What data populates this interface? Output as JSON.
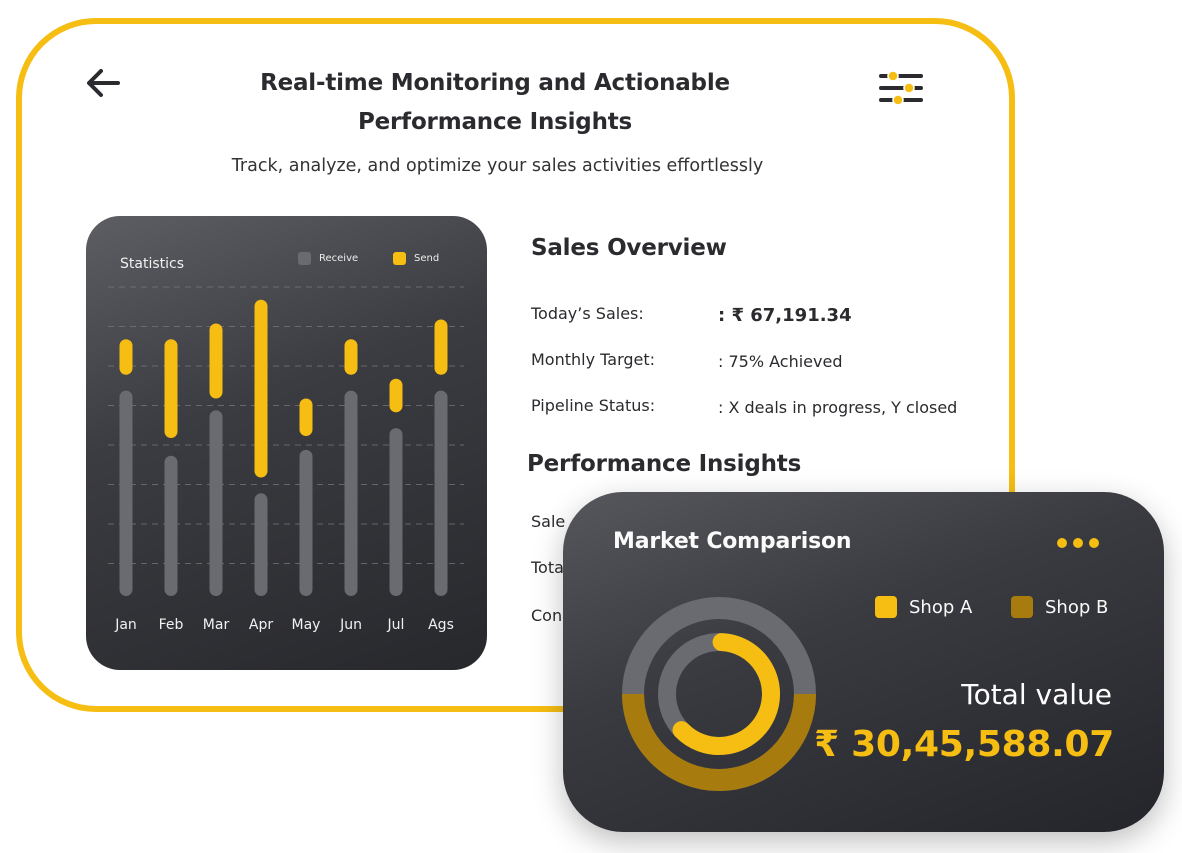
{
  "header": {
    "title_line1": "Real-time Monitoring and Actionable",
    "title_line2": "Performance Insights",
    "subtitle": "Track, analyze, and optimize your sales activities effortlessly",
    "back_icon": "arrow-left-icon",
    "filter_icon": "sliders-icon"
  },
  "colors": {
    "accent": "#f6bd12",
    "dark_card": "#2f3035",
    "bar_grey": "#6a6b70",
    "shop_b": "#a87b0e"
  },
  "statistics": {
    "title": "Statistics",
    "legend": [
      {
        "label": "Receive",
        "color": "#6a6b70"
      },
      {
        "label": "Send",
        "color": "#f6bd12"
      }
    ]
  },
  "chart_data": {
    "type": "bar",
    "categories": [
      "Jan",
      "Feb",
      "Mar",
      "Apr",
      "May",
      "Jun",
      "Jul",
      "Ags"
    ],
    "series": [
      {
        "name": "Receive",
        "values": [
          [
            0,
            10.4
          ],
          [
            0,
            7.1
          ],
          [
            0,
            9.4
          ],
          [
            0,
            5.2
          ],
          [
            0,
            7.4
          ],
          [
            0,
            10.4
          ],
          [
            0,
            8.5
          ],
          [
            0,
            10.4
          ]
        ]
      },
      {
        "name": "Send",
        "values": [
          [
            11.2,
            13.0
          ],
          [
            8.0,
            13.0
          ],
          [
            10.0,
            13.8
          ],
          [
            6.0,
            15.0
          ],
          [
            8.1,
            10.0
          ],
          [
            11.2,
            13.0
          ],
          [
            9.3,
            11.0
          ],
          [
            11.2,
            14.0
          ]
        ]
      }
    ],
    "ylim": [
      0,
      16
    ],
    "grid": true,
    "legend": "top-right"
  },
  "sales_overview": {
    "title": "Sales Overview",
    "rows": [
      {
        "label": "Today’s Sales:",
        "value": ": ₹ 67,191.34"
      },
      {
        "label": "Monthly Target:",
        "value": ": 75% Achieved"
      },
      {
        "label": "Pipeline Status:",
        "value": ": X deals in progress, Y closed"
      }
    ]
  },
  "performance_insights": {
    "title": "Performance Insights",
    "rows": [
      "Sale",
      "Tota",
      "Con"
    ]
  },
  "market": {
    "title": "Market Comparison",
    "more_icon": "more-horizontal-icon",
    "legend": [
      {
        "label": "Shop A",
        "color": "#f6bd12"
      },
      {
        "label": "Shop B",
        "color": "#a87b0e"
      }
    ],
    "total_label": "Total value",
    "total_value": "₹ 30,45,588.07",
    "shop_a_share": 0.62,
    "shop_b_share": 0.5
  }
}
